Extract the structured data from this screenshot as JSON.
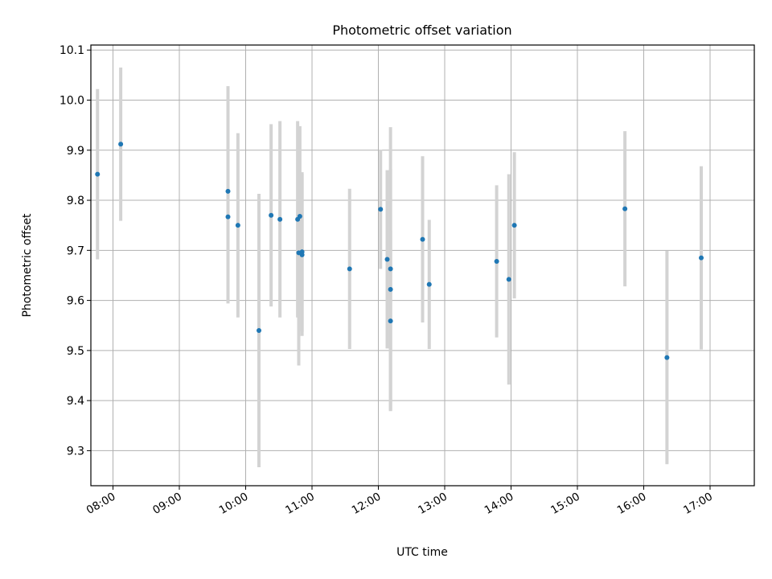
{
  "chart_data": {
    "type": "scatter",
    "title": "Photometric offset variation",
    "xlabel": "UTC time",
    "ylabel": "Photometric offset",
    "x_ticks": [
      "08:00",
      "09:00",
      "10:00",
      "11:00",
      "12:00",
      "13:00",
      "14:00",
      "15:00",
      "16:00",
      "17:00"
    ],
    "y_ticks": [
      "9.3",
      "9.4",
      "9.5",
      "9.6",
      "9.7",
      "9.8",
      "9.9",
      "10.0",
      "10.1"
    ],
    "xlim": [
      "07:40",
      "17:40"
    ],
    "ylim": [
      9.23,
      10.11
    ],
    "grid": true,
    "colors": {
      "point": "#1f77b4",
      "errorbar": "#d3d3d3",
      "grid": "#b0b0b0"
    },
    "series": [
      {
        "points": [
          {
            "x": "07:46",
            "y": 9.852,
            "err": 0.17
          },
          {
            "x": "08:07",
            "y": 9.912,
            "err": 0.153
          },
          {
            "x": "09:44",
            "y": 9.818,
            "err": 0.21
          },
          {
            "x": "09:44",
            "y": 9.767,
            "err": 0.173
          },
          {
            "x": "09:53",
            "y": 9.75,
            "err": 0.184
          },
          {
            "x": "10:12",
            "y": 9.54,
            "err": 0.273
          },
          {
            "x": "10:23",
            "y": 9.77,
            "err": 0.182
          },
          {
            "x": "10:31",
            "y": 9.762,
            "err": 0.196
          },
          {
            "x": "10:47",
            "y": 9.762,
            "err": 0.196
          },
          {
            "x": "10:48",
            "y": 9.695,
            "err": 0.225
          },
          {
            "x": "10:49",
            "y": 9.768,
            "err": 0.18
          },
          {
            "x": "10:51",
            "y": 9.697,
            "err": 0.159
          },
          {
            "x": "10:51",
            "y": 9.691,
            "err": 0.162
          },
          {
            "x": "11:34",
            "y": 9.663,
            "err": 0.16
          },
          {
            "x": "12:02",
            "y": 9.782,
            "err": 0.119
          },
          {
            "x": "12:08",
            "y": 9.682,
            "err": 0.178
          },
          {
            "x": "12:11",
            "y": 9.663,
            "err": 0.283
          },
          {
            "x": "12:11",
            "y": 9.622,
            "err": 0.24
          },
          {
            "x": "12:11",
            "y": 9.559,
            "err": 0.18
          },
          {
            "x": "12:40",
            "y": 9.722,
            "err": 0.166
          },
          {
            "x": "12:46",
            "y": 9.632,
            "err": 0.129
          },
          {
            "x": "13:47",
            "y": 9.678,
            "err": 0.152
          },
          {
            "x": "13:58",
            "y": 9.642,
            "err": 0.21
          },
          {
            "x": "14:03",
            "y": 9.75,
            "err": 0.146
          },
          {
            "x": "15:43",
            "y": 9.783,
            "err": 0.155
          },
          {
            "x": "16:21",
            "y": 9.486,
            "err": 0.213
          },
          {
            "x": "16:52",
            "y": 9.685,
            "err": 0.183
          }
        ]
      }
    ]
  }
}
